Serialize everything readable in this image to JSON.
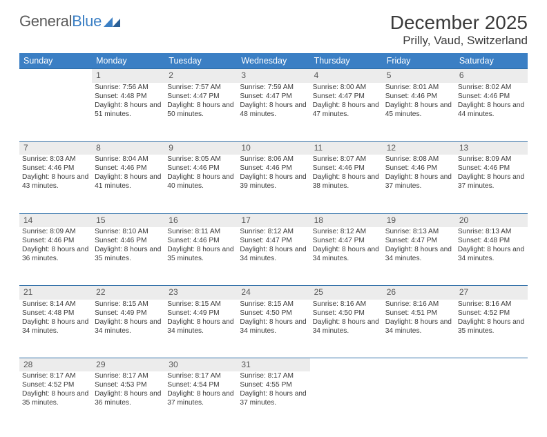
{
  "brand": {
    "word1": "General",
    "word2": "Blue"
  },
  "colors": {
    "accent": "#3B7FC4",
    "header_border": "#2F6FA8",
    "daynum_bg": "#ECECEC",
    "text": "#3a3a3a",
    "bg": "#ffffff"
  },
  "title": "December 2025",
  "location": "Prilly, Vaud, Switzerland",
  "weekdays": [
    "Sunday",
    "Monday",
    "Tuesday",
    "Wednesday",
    "Thursday",
    "Friday",
    "Saturday"
  ],
  "weeks": [
    {
      "days": [
        null,
        {
          "n": "1",
          "sunrise": "7:56 AM",
          "sunset": "4:48 PM",
          "daylight": "8 hours and 51 minutes."
        },
        {
          "n": "2",
          "sunrise": "7:57 AM",
          "sunset": "4:47 PM",
          "daylight": "8 hours and 50 minutes."
        },
        {
          "n": "3",
          "sunrise": "7:59 AM",
          "sunset": "4:47 PM",
          "daylight": "8 hours and 48 minutes."
        },
        {
          "n": "4",
          "sunrise": "8:00 AM",
          "sunset": "4:47 PM",
          "daylight": "8 hours and 47 minutes."
        },
        {
          "n": "5",
          "sunrise": "8:01 AM",
          "sunset": "4:46 PM",
          "daylight": "8 hours and 45 minutes."
        },
        {
          "n": "6",
          "sunrise": "8:02 AM",
          "sunset": "4:46 PM",
          "daylight": "8 hours and 44 minutes."
        }
      ]
    },
    {
      "days": [
        {
          "n": "7",
          "sunrise": "8:03 AM",
          "sunset": "4:46 PM",
          "daylight": "8 hours and 43 minutes."
        },
        {
          "n": "8",
          "sunrise": "8:04 AM",
          "sunset": "4:46 PM",
          "daylight": "8 hours and 41 minutes."
        },
        {
          "n": "9",
          "sunrise": "8:05 AM",
          "sunset": "4:46 PM",
          "daylight": "8 hours and 40 minutes."
        },
        {
          "n": "10",
          "sunrise": "8:06 AM",
          "sunset": "4:46 PM",
          "daylight": "8 hours and 39 minutes."
        },
        {
          "n": "11",
          "sunrise": "8:07 AM",
          "sunset": "4:46 PM",
          "daylight": "8 hours and 38 minutes."
        },
        {
          "n": "12",
          "sunrise": "8:08 AM",
          "sunset": "4:46 PM",
          "daylight": "8 hours and 37 minutes."
        },
        {
          "n": "13",
          "sunrise": "8:09 AM",
          "sunset": "4:46 PM",
          "daylight": "8 hours and 37 minutes."
        }
      ]
    },
    {
      "days": [
        {
          "n": "14",
          "sunrise": "8:09 AM",
          "sunset": "4:46 PM",
          "daylight": "8 hours and 36 minutes."
        },
        {
          "n": "15",
          "sunrise": "8:10 AM",
          "sunset": "4:46 PM",
          "daylight": "8 hours and 35 minutes."
        },
        {
          "n": "16",
          "sunrise": "8:11 AM",
          "sunset": "4:46 PM",
          "daylight": "8 hours and 35 minutes."
        },
        {
          "n": "17",
          "sunrise": "8:12 AM",
          "sunset": "4:47 PM",
          "daylight": "8 hours and 34 minutes."
        },
        {
          "n": "18",
          "sunrise": "8:12 AM",
          "sunset": "4:47 PM",
          "daylight": "8 hours and 34 minutes."
        },
        {
          "n": "19",
          "sunrise": "8:13 AM",
          "sunset": "4:47 PM",
          "daylight": "8 hours and 34 minutes."
        },
        {
          "n": "20",
          "sunrise": "8:13 AM",
          "sunset": "4:48 PM",
          "daylight": "8 hours and 34 minutes."
        }
      ]
    },
    {
      "days": [
        {
          "n": "21",
          "sunrise": "8:14 AM",
          "sunset": "4:48 PM",
          "daylight": "8 hours and 34 minutes."
        },
        {
          "n": "22",
          "sunrise": "8:15 AM",
          "sunset": "4:49 PM",
          "daylight": "8 hours and 34 minutes."
        },
        {
          "n": "23",
          "sunrise": "8:15 AM",
          "sunset": "4:49 PM",
          "daylight": "8 hours and 34 minutes."
        },
        {
          "n": "24",
          "sunrise": "8:15 AM",
          "sunset": "4:50 PM",
          "daylight": "8 hours and 34 minutes."
        },
        {
          "n": "25",
          "sunrise": "8:16 AM",
          "sunset": "4:50 PM",
          "daylight": "8 hours and 34 minutes."
        },
        {
          "n": "26",
          "sunrise": "8:16 AM",
          "sunset": "4:51 PM",
          "daylight": "8 hours and 34 minutes."
        },
        {
          "n": "27",
          "sunrise": "8:16 AM",
          "sunset": "4:52 PM",
          "daylight": "8 hours and 35 minutes."
        }
      ]
    },
    {
      "days": [
        {
          "n": "28",
          "sunrise": "8:17 AM",
          "sunset": "4:52 PM",
          "daylight": "8 hours and 35 minutes."
        },
        {
          "n": "29",
          "sunrise": "8:17 AM",
          "sunset": "4:53 PM",
          "daylight": "8 hours and 36 minutes."
        },
        {
          "n": "30",
          "sunrise": "8:17 AM",
          "sunset": "4:54 PM",
          "daylight": "8 hours and 37 minutes."
        },
        {
          "n": "31",
          "sunrise": "8:17 AM",
          "sunset": "4:55 PM",
          "daylight": "8 hours and 37 minutes."
        },
        null,
        null,
        null
      ]
    }
  ],
  "labels": {
    "sunrise_prefix": "Sunrise: ",
    "sunset_prefix": "Sunset: ",
    "daylight_prefix": "Daylight: "
  }
}
